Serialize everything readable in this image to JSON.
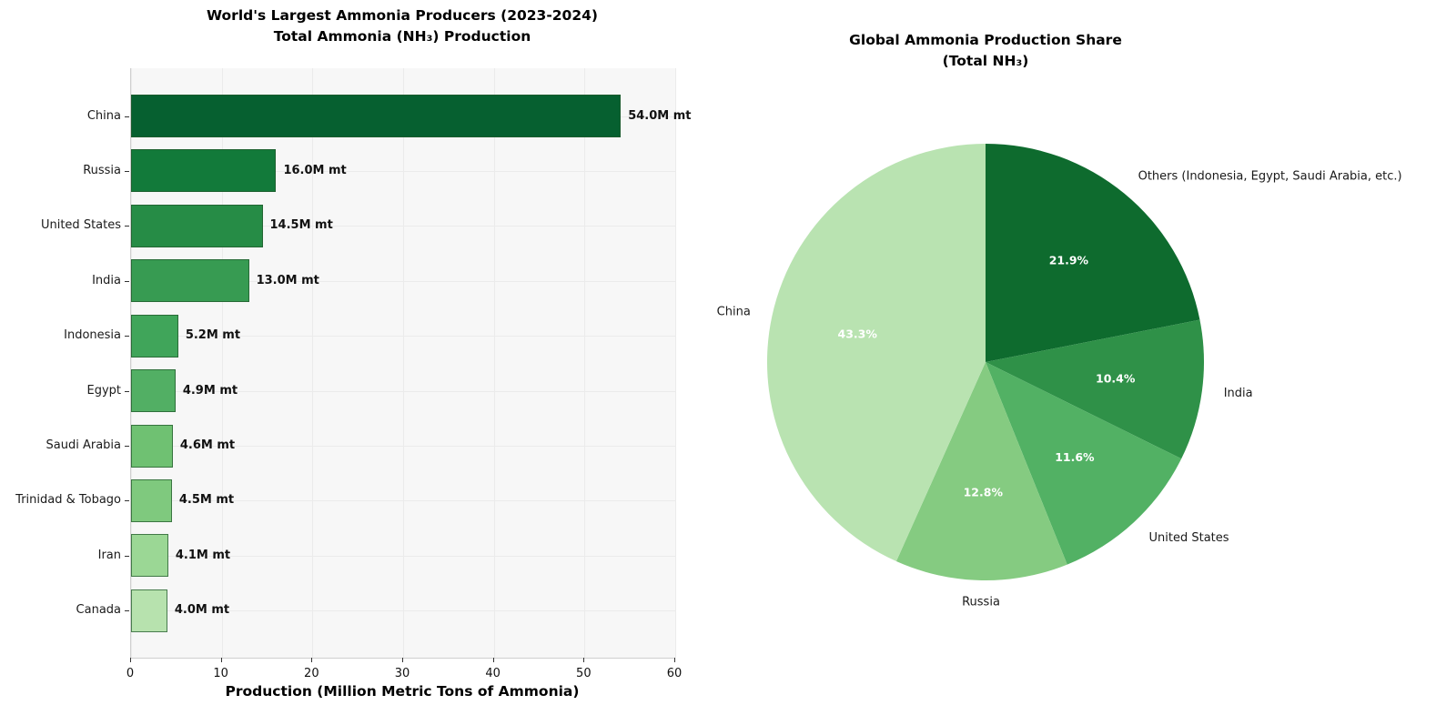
{
  "page": {
    "background": "#ffffff"
  },
  "chart_data": [
    {
      "type": "bar",
      "orientation": "horizontal",
      "title_line1": "World's Largest Ammonia Producers (2023-2024)",
      "title_line2": "Total Ammonia (NH₃) Production",
      "xlabel": "Production (Million Metric Tons of Ammonia)",
      "categories": [
        "China",
        "Russia",
        "United States",
        "India",
        "Indonesia",
        "Egypt",
        "Saudi Arabia",
        "Trinidad & Tobago",
        "Iran",
        "Canada"
      ],
      "values": [
        54.0,
        16.0,
        14.5,
        13.0,
        5.2,
        4.9,
        4.6,
        4.5,
        4.1,
        4.0
      ],
      "value_labels": [
        "54.0M mt",
        "16.0M mt",
        "14.5M mt",
        "13.0M mt",
        "5.2M mt",
        "4.9M mt",
        "4.6M mt",
        "4.5M mt",
        "4.1M mt",
        "4.0M mt"
      ],
      "xlim": [
        0,
        60
      ],
      "xticks": [
        "0",
        "10",
        "20",
        "30",
        "40",
        "50",
        "60"
      ],
      "grid": true,
      "plot_bg": "#f7f7f7",
      "grid_color": "#ebebeb",
      "bar_colors": [
        "#066030",
        "#127a3a",
        "#268c46",
        "#379b52",
        "#40a55a",
        "#52af64",
        "#6fc172",
        "#7fc97e",
        "#9bd795",
        "#b7e2ae"
      ],
      "bar_edge_color": "rgba(35,90,45,0.75)"
    },
    {
      "type": "pie",
      "title_line1": "Global Ammonia Production Share",
      "title_line2": "(Total NH₃)",
      "labels": [
        "Others (Indonesia, Egypt, Saudi Arabia, etc.)",
        "India",
        "United States",
        "Russia",
        "China"
      ],
      "values": [
        21.9,
        10.4,
        11.6,
        12.8,
        43.3
      ],
      "pct_labels": [
        "21.9%",
        "10.4%",
        "11.6%",
        "12.8%",
        "43.3%"
      ],
      "colors": [
        "#0e6b2e",
        "#2f9148",
        "#52b164",
        "#85cb81",
        "#b9e3b1"
      ],
      "start_angle_deg": 90,
      "direction": "clockwise",
      "legend": "none",
      "pct_text_color": "#ffffff",
      "label_color": "#1a1a1a"
    }
  ]
}
